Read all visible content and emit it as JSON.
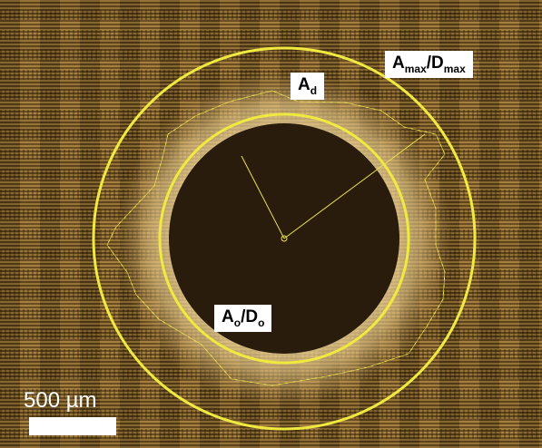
{
  "labels": [
    {
      "parts": [
        {
          "text": "A"
        },
        {
          "text": "d",
          "sub": true
        }
      ]
    },
    {
      "parts": [
        {
          "text": "A"
        },
        {
          "text": "max",
          "sub": true
        },
        {
          "text": "/D"
        },
        {
          "text": "max",
          "sub": true
        }
      ]
    },
    {
      "parts": [
        {
          "text": "A"
        },
        {
          "text": "o",
          "sub": true
        },
        {
          "text": "/D"
        },
        {
          "text": "o",
          "sub": true
        }
      ]
    }
  ],
  "scale_bar": {
    "label": "500 µm"
  }
}
